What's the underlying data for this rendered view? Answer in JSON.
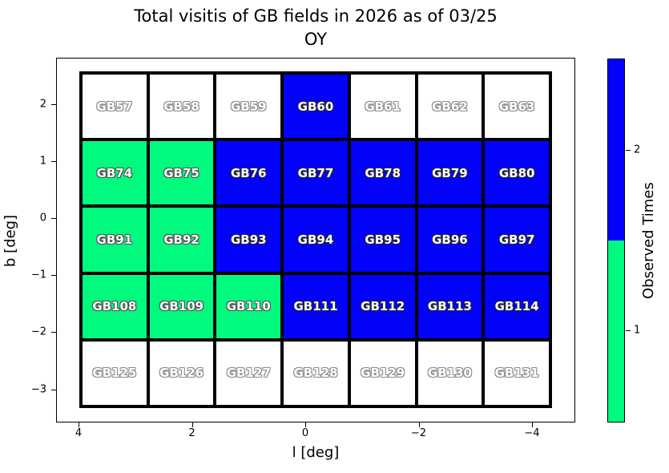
{
  "title": {
    "line1": "Total visitis of GB fields in 2026 as of 03/25",
    "line2": "OY"
  },
  "chart_data": {
    "type": "heatmap",
    "title": "Total visitis of GB fields in 2026 as of 03/25 OY",
    "xlabel": "l [deg]",
    "ylabel": "b [deg]",
    "x_tick_labels": [
      "4",
      "2",
      "0",
      "−2",
      "−4"
    ],
    "y_tick_labels": [
      "2",
      "1",
      "0",
      "−1",
      "−2",
      "−3"
    ],
    "x_axis_reversed": true,
    "grid_columns": 7,
    "grid_rows": 5,
    "value_colors": {
      "0": "#ffffff",
      "1": "#00fa7e",
      "2": "#0202fa"
    },
    "colorbar": {
      "label": "Observed Times",
      "tick_labels": [
        "2",
        "1"
      ],
      "segment_colors_top_to_bottom": [
        "#0202fa",
        "#00fa7e"
      ]
    },
    "rows": [
      [
        {
          "label": "GB57",
          "observed": 0
        },
        {
          "label": "GB58",
          "observed": 0
        },
        {
          "label": "GB59",
          "observed": 0
        },
        {
          "label": "GB60",
          "observed": 2
        },
        {
          "label": "GB61",
          "observed": 0
        },
        {
          "label": "GB62",
          "observed": 0
        },
        {
          "label": "GB63",
          "observed": 0
        }
      ],
      [
        {
          "label": "GB74",
          "observed": 1
        },
        {
          "label": "GB75",
          "observed": 1
        },
        {
          "label": "GB76",
          "observed": 2
        },
        {
          "label": "GB77",
          "observed": 2
        },
        {
          "label": "GB78",
          "observed": 2
        },
        {
          "label": "GB79",
          "observed": 2
        },
        {
          "label": "GB80",
          "observed": 2
        }
      ],
      [
        {
          "label": "GB91",
          "observed": 1
        },
        {
          "label": "GB92",
          "observed": 1
        },
        {
          "label": "GB93",
          "observed": 2
        },
        {
          "label": "GB94",
          "observed": 2
        },
        {
          "label": "GB95",
          "observed": 2
        },
        {
          "label": "GB96",
          "observed": 2
        },
        {
          "label": "GB97",
          "observed": 2
        }
      ],
      [
        {
          "label": "GB108",
          "observed": 1
        },
        {
          "label": "GB109",
          "observed": 1
        },
        {
          "label": "GB110",
          "observed": 1
        },
        {
          "label": "GB111",
          "observed": 2
        },
        {
          "label": "GB112",
          "observed": 2
        },
        {
          "label": "GB113",
          "observed": 2
        },
        {
          "label": "GB114",
          "observed": 2
        }
      ],
      [
        {
          "label": "GB125",
          "observed": 0
        },
        {
          "label": "GB126",
          "observed": 0
        },
        {
          "label": "GB127",
          "observed": 0
        },
        {
          "label": "GB128",
          "observed": 0
        },
        {
          "label": "GB129",
          "observed": 0
        },
        {
          "label": "GB130",
          "observed": 0
        },
        {
          "label": "GB131",
          "observed": 0
        }
      ]
    ]
  }
}
